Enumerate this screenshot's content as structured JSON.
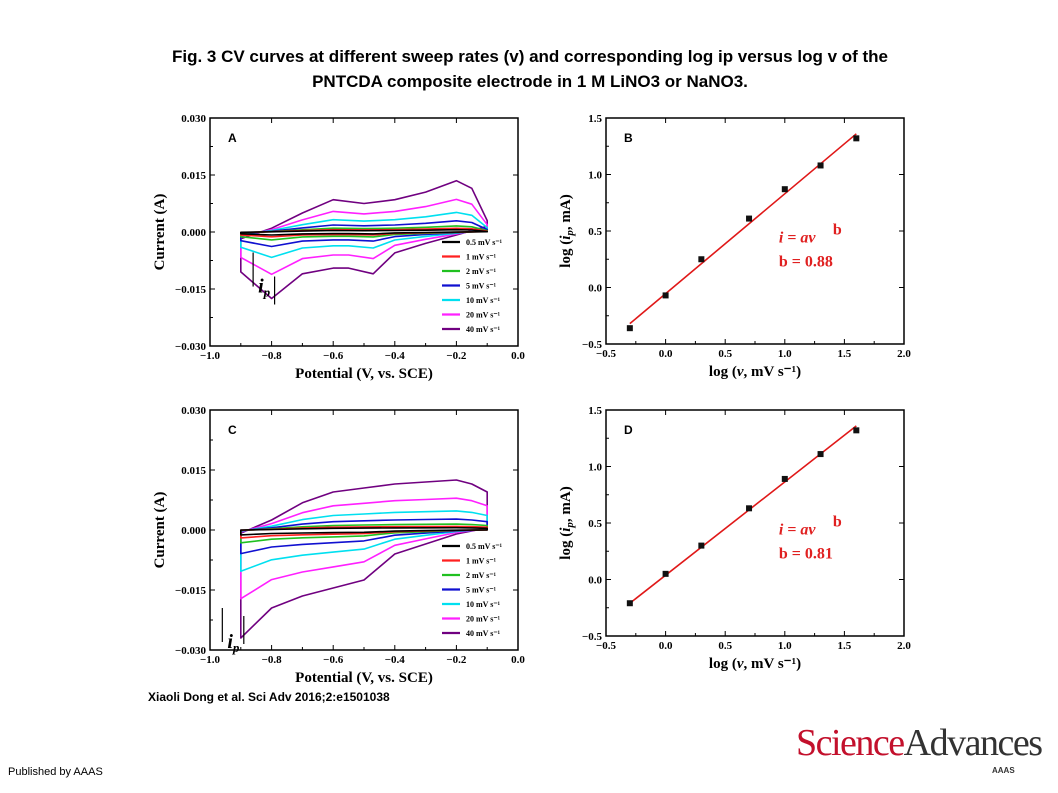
{
  "header": {
    "title_line1": "Fig. 3 CV curves at different sweep rates (v) and corresponding log ip versus log v of the",
    "title_line2": "PNTCDA composite electrode in 1 M LiNO3 or NaNO3."
  },
  "citation": "Xiaoli Dong et al. Sci Adv 2016;2:e1501038",
  "publisher": "Published by AAAS",
  "logo": {
    "word1": "Science",
    "word2": "Advances",
    "sub": "AAAS"
  },
  "chart_data": [
    {
      "panel": "A",
      "type": "line",
      "xlabel": "Potential (V, vs. SCE)",
      "ylabel": "Current (A)",
      "xlim": [
        -1.0,
        0.0
      ],
      "ylim": [
        -0.03,
        0.03
      ],
      "xticks": [
        "−1.0",
        "−0.8",
        "−0.6",
        "−0.4",
        "−0.2",
        "0.0"
      ],
      "yticks": [
        "0.030",
        "0.015",
        "0.000",
        "−0.015",
        "−0.030"
      ],
      "legend_position": "bottom-right",
      "annotation": "i_p",
      "series": [
        {
          "name": "0.5 mV s⁻¹",
          "color": "#000000",
          "scale": 0.5
        },
        {
          "name": "1 mV s⁻¹",
          "color": "#ff2020",
          "scale": 0.8
        },
        {
          "name": "2 mV s⁻¹",
          "color": "#20c020",
          "scale": 1.3
        },
        {
          "name": "5 mV s⁻¹",
          "color": "#1010d0",
          "scale": 2.4
        },
        {
          "name": "10 mV s⁻¹",
          "color": "#00e0f0",
          "scale": 4.2
        },
        {
          "name": "20 mV s⁻¹",
          "color": "#ff20ff",
          "scale": 7.0
        },
        {
          "name": "40 mV s⁻¹",
          "color": "#700080",
          "scale": 11.0
        }
      ],
      "shape": {
        "upper": [
          [
            -0.9,
            -0.0018
          ],
          [
            -0.8,
            0.001
          ],
          [
            -0.7,
            0.005
          ],
          [
            -0.6,
            0.0085
          ],
          [
            -0.5,
            0.0075
          ],
          [
            -0.4,
            0.0085
          ],
          [
            -0.3,
            0.0105
          ],
          [
            -0.2,
            0.0135
          ],
          [
            -0.15,
            0.0115
          ],
          [
            -0.1,
            0.003
          ]
        ],
        "lower": [
          [
            -0.1,
            0.0015
          ],
          [
            -0.2,
            -0.0008
          ],
          [
            -0.3,
            -0.003
          ],
          [
            -0.4,
            -0.0055
          ],
          [
            -0.47,
            -0.011
          ],
          [
            -0.55,
            -0.0095
          ],
          [
            -0.6,
            -0.0095
          ],
          [
            -0.7,
            -0.011
          ],
          [
            -0.8,
            -0.0175
          ],
          [
            -0.9,
            -0.0105
          ]
        ]
      }
    },
    {
      "panel": "B",
      "type": "scatter",
      "xlabel": "log (v, mV s⁻¹)",
      "ylabel": "log (i_p, mA)",
      "xlim": [
        -0.5,
        2.0
      ],
      "ylim": [
        -0.5,
        1.5
      ],
      "xticks": [
        "−0.5",
        "0.0",
        "0.5",
        "1.0",
        "1.5",
        "2.0"
      ],
      "yticks": [
        "1.5",
        "1.0",
        "0.5",
        "0.0",
        "−0.5"
      ],
      "x": [
        -0.3,
        0.0,
        0.3,
        0.7,
        1.0,
        1.3,
        1.6
      ],
      "y": [
        -0.36,
        -0.07,
        0.25,
        0.61,
        0.87,
        1.08,
        1.32
      ],
      "fit": {
        "x": [
          -0.3,
          1.6
        ],
        "y": [
          -0.32,
          1.36
        ]
      },
      "equation": "i = av",
      "exponent": "b",
      "b_value": "b = 0.88"
    },
    {
      "panel": "C",
      "type": "line",
      "xlabel": "Potential (V, vs. SCE)",
      "ylabel": "Current (A)",
      "xlim": [
        -1.0,
        0.0
      ],
      "ylim": [
        -0.03,
        0.03
      ],
      "xticks": [
        "−1.0",
        "−0.8",
        "−0.6",
        "−0.4",
        "−0.2",
        "0.0"
      ],
      "yticks": [
        "0.030",
        "0.015",
        "0.000",
        "−0.015",
        "−0.030"
      ],
      "legend_position": "bottom-right",
      "annotation": "i_p",
      "series": [
        {
          "name": "0.5 mV s⁻¹",
          "color": "#000000",
          "scale": 0.5
        },
        {
          "name": "1 mV s⁻¹",
          "color": "#ff2020",
          "scale": 0.8
        },
        {
          "name": "2 mV s⁻¹",
          "color": "#20c020",
          "scale": 1.3
        },
        {
          "name": "5 mV s⁻¹",
          "color": "#1010d0",
          "scale": 2.4
        },
        {
          "name": "10 mV s⁻¹",
          "color": "#00e0f0",
          "scale": 4.2
        },
        {
          "name": "20 mV s⁻¹",
          "color": "#ff20ff",
          "scale": 7.0
        },
        {
          "name": "40 mV s⁻¹",
          "color": "#700080",
          "scale": 11.0
        }
      ],
      "shape": {
        "upper": [
          [
            -0.9,
            -0.0008
          ],
          [
            -0.8,
            0.0025
          ],
          [
            -0.7,
            0.0068
          ],
          [
            -0.6,
            0.0095
          ],
          [
            -0.5,
            0.0105
          ],
          [
            -0.4,
            0.0115
          ],
          [
            -0.3,
            0.012
          ],
          [
            -0.2,
            0.0125
          ],
          [
            -0.15,
            0.0115
          ],
          [
            -0.1,
            0.0095
          ]
        ],
        "lower": [
          [
            -0.1,
            0.0005
          ],
          [
            -0.2,
            -0.001
          ],
          [
            -0.3,
            -0.0035
          ],
          [
            -0.4,
            -0.006
          ],
          [
            -0.5,
            -0.0125
          ],
          [
            -0.6,
            -0.0145
          ],
          [
            -0.7,
            -0.0165
          ],
          [
            -0.8,
            -0.0195
          ],
          [
            -0.9,
            -0.027
          ]
        ]
      }
    },
    {
      "panel": "D",
      "type": "scatter",
      "xlabel": "log (v, mV s⁻¹)",
      "ylabel": "log (i_p, mA)",
      "xlim": [
        -0.5,
        2.0
      ],
      "ylim": [
        -0.5,
        1.5
      ],
      "xticks": [
        "−0.5",
        "0.0",
        "0.5",
        "1.0",
        "1.5",
        "2.0"
      ],
      "yticks": [
        "1.5",
        "1.0",
        "0.5",
        "0.0",
        "−0.5"
      ],
      "x": [
        -0.3,
        0.0,
        0.3,
        0.7,
        1.0,
        1.3,
        1.6
      ],
      "y": [
        -0.21,
        0.05,
        0.3,
        0.63,
        0.89,
        1.11,
        1.32
      ],
      "fit": {
        "x": [
          -0.3,
          1.6
        ],
        "y": [
          -0.21,
          1.36
        ]
      },
      "equation": "i = av",
      "exponent": "b",
      "b_value": "b = 0.81"
    }
  ]
}
